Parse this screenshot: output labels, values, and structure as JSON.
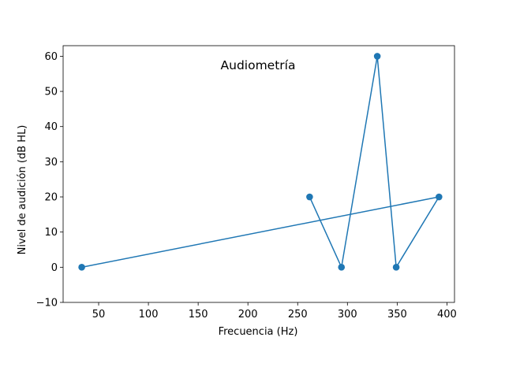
{
  "chart_data": {
    "type": "line",
    "title": "Audiometría",
    "xlabel": "Frecuencia (Hz)",
    "ylabel": "Nivel de audición (dB HL)",
    "xlim": [
      14.3,
      407.6
    ],
    "ylim": [
      -10,
      63
    ],
    "xticks": [
      50,
      100,
      150,
      200,
      250,
      300,
      350,
      400
    ],
    "xtick_labels": [
      "50",
      "100",
      "150",
      "200",
      "250",
      "300",
      "350",
      "400"
    ],
    "yticks": [
      -10,
      0,
      10,
      20,
      30,
      40,
      50,
      60
    ],
    "ytick_labels": [
      "−10",
      "0",
      "10",
      "20",
      "30",
      "40",
      "50",
      "60"
    ],
    "grid": false,
    "series": [
      {
        "color": "#1f77b4",
        "marker": "circle",
        "x": [
          262,
          294,
          330,
          349,
          392,
          33
        ],
        "y": [
          20,
          0,
          60,
          0,
          20,
          0
        ]
      }
    ]
  }
}
